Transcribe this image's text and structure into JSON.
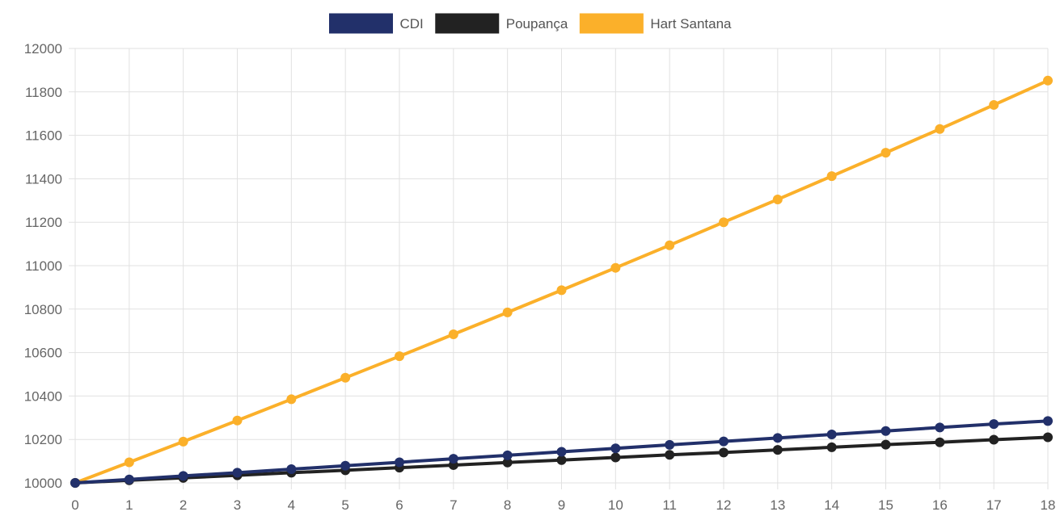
{
  "chart_data": {
    "type": "line",
    "title": "",
    "xlabel": "",
    "ylabel": "",
    "x": [
      0,
      1,
      2,
      3,
      4,
      5,
      6,
      7,
      8,
      9,
      10,
      11,
      12,
      13,
      14,
      15,
      16,
      17,
      18
    ],
    "ylim": [
      10000,
      12000
    ],
    "y_ticks": [
      10000,
      10200,
      10400,
      10600,
      10800,
      11000,
      11200,
      11400,
      11600,
      11800,
      12000
    ],
    "grid": true,
    "legend_position": "top-center",
    "series": [
      {
        "name": "CDI",
        "color": "#22306a",
        "values": [
          10000,
          10016,
          10032,
          10047,
          10063,
          10079,
          10095,
          10111,
          10127,
          10143,
          10159,
          10175,
          10191,
          10207,
          10223,
          10239,
          10255,
          10271,
          10285
        ]
      },
      {
        "name": "Poupança",
        "color": "#222222",
        "values": [
          10000,
          10012,
          10023,
          10035,
          10047,
          10058,
          10070,
          10082,
          10094,
          10105,
          10117,
          10129,
          10140,
          10152,
          10164,
          10176,
          10187,
          10199,
          10210
        ]
      },
      {
        "name": "Hart Santana",
        "color": "#fbb02a",
        "values": [
          10000,
          10095,
          10190,
          10287,
          10385,
          10484,
          10583,
          10684,
          10785,
          10887,
          10990,
          11094,
          11200,
          11305,
          11412,
          11520,
          11629,
          11740,
          11852
        ]
      }
    ]
  }
}
